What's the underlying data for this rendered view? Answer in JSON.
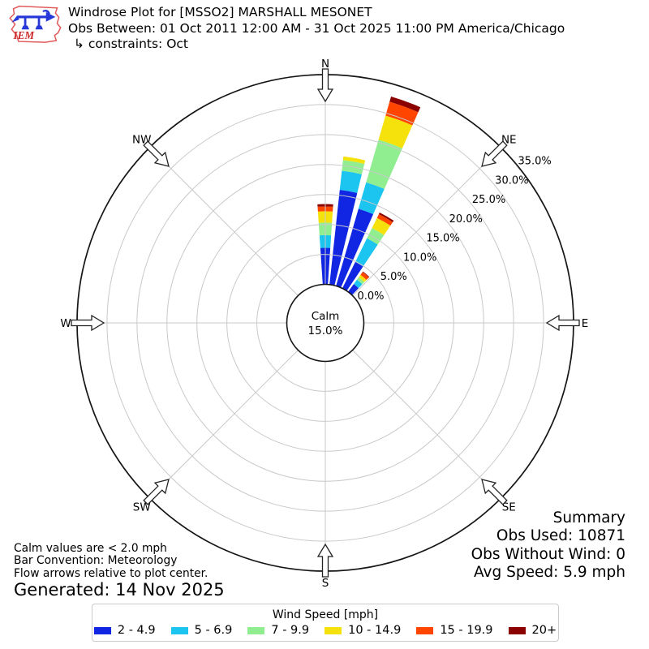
{
  "header": {
    "logo_text": "IEM",
    "title": "Windrose Plot for [MSSO2] MARSHALL MESONET",
    "subtitle": "Obs Between: 01 Oct 2011 12:00 AM - 31 Oct 2025 11:00 PM America/Chicago",
    "constraints": "↳ constraints: Oct"
  },
  "chart_data": {
    "type": "windrose",
    "units": "mph",
    "compass_labels": [
      "N",
      "NE",
      "E",
      "SE",
      "S",
      "SW",
      "W",
      "NW"
    ],
    "compass_angles_deg": [
      0,
      45,
      90,
      135,
      180,
      225,
      270,
      315
    ],
    "ring_values_pct": [
      0,
      5,
      10,
      15,
      20,
      25,
      30,
      35
    ],
    "ring_labels": [
      "0.0%",
      "5.0%",
      "10.0%",
      "15.0%",
      "20.0%",
      "25.0%",
      "30.0%",
      "35.0%"
    ],
    "rmax_pct": 35,
    "grid_color": "#c9c9c9",
    "outer_ring_color": "#151515",
    "calm": {
      "label": "Calm",
      "value": "15.0%"
    },
    "speed_bins": [
      {
        "label": "2 - 4.9",
        "color": "#1126e2"
      },
      {
        "label": "5 - 6.9",
        "color": "#1cc4f0"
      },
      {
        "label": "7 - 9.9",
        "color": "#90ee90"
      },
      {
        "label": "10 - 14.9",
        "color": "#f5e20c"
      },
      {
        "label": "15 - 19.9",
        "color": "#ff4500"
      },
      {
        "label": "20+",
        "color": "#8b0000"
      }
    ],
    "bar_width_deg": 7.6,
    "bars": [
      {
        "direction_deg": 0,
        "values": [
          6.1,
          2.1,
          2.1,
          1.9,
          0.8,
          0.4
        ]
      },
      {
        "direction_deg": 10,
        "values": [
          15.9,
          3.2,
          1.8,
          0.6,
          0.0,
          0.0
        ]
      },
      {
        "direction_deg": 20,
        "values": [
          13.4,
          4.6,
          7.4,
          4.2,
          2.4,
          0.9
        ]
      },
      {
        "direction_deg": 30,
        "values": [
          4.9,
          4.4,
          1.9,
          1.9,
          0.7,
          0.3
        ]
      },
      {
        "direction_deg": 40,
        "values": [
          1.6,
          0.9,
          0.5,
          0.5,
          0.6,
          0.1
        ]
      }
    ]
  },
  "summary": {
    "title": "Summary",
    "obs_used": "Obs Used: 10871",
    "obs_without_wind": "Obs Without Wind: 0",
    "avg_speed": "Avg Speed: 5.9 mph"
  },
  "notes": {
    "calm": "Calm values are < 2.0 mph",
    "convention": "Bar Convention: Meteorology",
    "arrows": "Flow arrows relative to plot center.",
    "generated": "Generated: 14 Nov 2025"
  },
  "legend": {
    "title": "Wind Speed [mph]"
  }
}
